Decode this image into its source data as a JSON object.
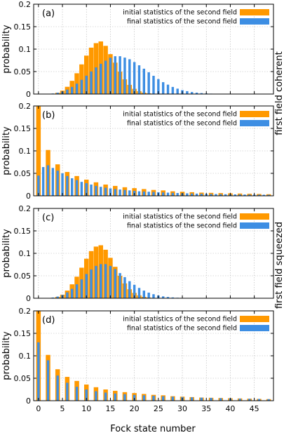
{
  "figure": {
    "xlabel": "Fock state number",
    "right_labels": [
      "first field coherent",
      "first field squeezed"
    ]
  },
  "colors": {
    "initial": "#ff9900",
    "final": "#3d8ee3"
  },
  "chart_data": [
    {
      "type": "bar",
      "panel_label": "(a)",
      "ylabel": "probability",
      "xlim": [
        -1,
        49
      ],
      "ylim": [
        0,
        0.2
      ],
      "xticks": [
        0,
        5,
        10,
        15,
        20,
        25,
        30,
        35,
        40,
        45
      ],
      "yticks": [
        0,
        0.05,
        0.1,
        0.15,
        0.2
      ],
      "ytick_labels": [
        "0",
        "0.05",
        "0.1",
        "0.15",
        "0.2"
      ],
      "x": [
        0,
        1,
        2,
        3,
        4,
        5,
        6,
        7,
        8,
        9,
        10,
        11,
        12,
        13,
        14,
        15,
        16,
        17,
        18,
        19,
        20,
        21,
        22,
        23,
        24,
        25,
        26,
        27,
        28,
        29,
        30,
        31,
        32,
        33,
        34,
        35,
        36,
        37,
        38,
        39,
        40,
        41,
        42,
        43,
        44,
        45,
        46,
        47,
        48
      ],
      "series": [
        {
          "name": "initial statistics of the second field",
          "color": "#ff9900",
          "values": [
            0.0,
            0.0,
            0.0002,
            0.0008,
            0.0028,
            0.0075,
            0.0161,
            0.0294,
            0.0463,
            0.066,
            0.0856,
            0.1033,
            0.1133,
            0.1171,
            0.1073,
            0.0888,
            0.0699,
            0.0499,
            0.0327,
            0.0204,
            0.0116,
            0.0064,
            0.0032,
            0.0015,
            0.0007,
            0.0003,
            0.0001,
            0,
            0,
            0,
            0,
            0,
            0,
            0,
            0,
            0,
            0,
            0,
            0,
            0,
            0,
            0,
            0,
            0,
            0,
            0,
            0,
            0,
            0
          ]
        },
        {
          "name": "final statistics of the second field",
          "color": "#3d8ee3",
          "values": [
            0.0,
            0.0001,
            0.0004,
            0.0012,
            0.003,
            0.0058,
            0.0099,
            0.0158,
            0.0231,
            0.0316,
            0.0408,
            0.0502,
            0.0594,
            0.0674,
            0.0742,
            0.0808,
            0.0842,
            0.0842,
            0.0811,
            0.0775,
            0.0712,
            0.064,
            0.0564,
            0.0484,
            0.0406,
            0.0332,
            0.0264,
            0.0209,
            0.0158,
            0.012,
            0.0088,
            0.0064,
            0.0045,
            0.0031,
            0.0021,
            0.0014,
            0.0009,
            0.0006,
            0.0004,
            0.0002,
            0.0001,
            0.0001,
            0,
            0,
            0,
            0,
            0,
            0,
            0
          ]
        }
      ]
    },
    {
      "type": "bar",
      "panel_label": "(b)",
      "ylabel": "probability",
      "xlim": [
        -1,
        49
      ],
      "ylim": [
        0,
        0.2
      ],
      "xticks": [
        0,
        5,
        10,
        15,
        20,
        25,
        30,
        35,
        40,
        45
      ],
      "yticks": [
        0,
        0.05,
        0.1,
        0.15,
        0.2
      ],
      "ytick_labels": [
        "0",
        "0.05",
        "0.1",
        "0.15",
        "0.2"
      ],
      "x": [
        0,
        1,
        2,
        3,
        4,
        5,
        6,
        7,
        8,
        9,
        10,
        11,
        12,
        13,
        14,
        15,
        16,
        17,
        18,
        19,
        20,
        21,
        22,
        23,
        24,
        25,
        26,
        27,
        28,
        29,
        30,
        31,
        32,
        33,
        34,
        35,
        36,
        37,
        38,
        39,
        40,
        41,
        42,
        43,
        44,
        45,
        46,
        47,
        48
      ],
      "series": [
        {
          "name": "initial statistics of the second field",
          "color": "#ff9900",
          "values": [
            0.199,
            0,
            0.102,
            0,
            0.07,
            0,
            0.053,
            0,
            0.044,
            0,
            0.036,
            0,
            0.03,
            0,
            0.025,
            0,
            0.022,
            0,
            0.019,
            0,
            0.017,
            0,
            0.015,
            0,
            0.013,
            0,
            0.012,
            0,
            0.01,
            0,
            0.009,
            0,
            0.008,
            0,
            0.007,
            0,
            0.0065,
            0,
            0.006,
            0,
            0.0055,
            0,
            0.005,
            0,
            0.0045,
            0,
            0.004,
            0,
            0.0035
          ]
        },
        {
          "name": "final statistics of the second field",
          "color": "#3d8ee3",
          "values": [
            0.045,
            0.064,
            0.068,
            0.062,
            0.056,
            0.05,
            0.044,
            0.039,
            0.035,
            0.031,
            0.028,
            0.025,
            0.022,
            0.02,
            0.018,
            0.0165,
            0.015,
            0.014,
            0.013,
            0.012,
            0.011,
            0.01,
            0.0095,
            0.009,
            0.0085,
            0.008,
            0.0075,
            0.007,
            0.0066,
            0.0062,
            0.0058,
            0.0055,
            0.0052,
            0.0049,
            0.0046,
            0.0043,
            0.0041,
            0.0039,
            0.0037,
            0.0035,
            0.0033,
            0.0031,
            0.003,
            0.0028,
            0.0027,
            0.0025,
            0.0024,
            0.0023,
            0.0022
          ]
        }
      ]
    },
    {
      "type": "bar",
      "panel_label": "(c)",
      "ylabel": "probability",
      "xlim": [
        -1,
        49
      ],
      "ylim": [
        0,
        0.2
      ],
      "xticks": [
        0,
        5,
        10,
        15,
        20,
        25,
        30,
        35,
        40,
        45
      ],
      "yticks": [
        0,
        0.05,
        0.1,
        0.15,
        0.2
      ],
      "ytick_labels": [
        "0",
        "0.05",
        "0.1",
        "0.15",
        "0.2"
      ],
      "x": [
        0,
        1,
        2,
        3,
        4,
        5,
        6,
        7,
        8,
        9,
        10,
        11,
        12,
        13,
        14,
        15,
        16,
        17,
        18,
        19,
        20,
        21,
        22,
        23,
        24,
        25,
        26,
        27,
        28,
        29,
        30,
        31,
        32,
        33,
        34,
        35,
        36,
        37,
        38,
        39,
        40,
        41,
        42,
        43,
        44,
        45,
        46,
        47,
        48
      ],
      "series": [
        {
          "name": "initial statistics of the second field",
          "color": "#ff9900",
          "values": [
            0.0,
            0.0,
            0.0003,
            0.001,
            0.003,
            0.008,
            0.017,
            0.031,
            0.048,
            0.068,
            0.088,
            0.105,
            0.115,
            0.118,
            0.108,
            0.09,
            0.07,
            0.05,
            0.033,
            0.02,
            0.012,
            0.0065,
            0.0032,
            0.0015,
            0.0007,
            0.0003,
            0.0001,
            0,
            0,
            0,
            0,
            0,
            0,
            0,
            0,
            0,
            0,
            0,
            0,
            0,
            0,
            0,
            0,
            0,
            0,
            0,
            0,
            0,
            0
          ]
        },
        {
          "name": "final statistics of the second field",
          "color": "#3d8ee3",
          "values": [
            0.0,
            0.0002,
            0.0006,
            0.0016,
            0.0038,
            0.0075,
            0.013,
            0.021,
            0.031,
            0.042,
            0.054,
            0.064,
            0.072,
            0.076,
            0.076,
            0.072,
            0.065,
            0.056,
            0.047,
            0.038,
            0.03,
            0.023,
            0.017,
            0.0125,
            0.009,
            0.0062,
            0.0042,
            0.0028,
            0.0018,
            0.0011,
            0.0007,
            0.0004,
            0.0002,
            0.0001,
            0,
            0,
            0,
            0,
            0,
            0,
            0,
            0,
            0,
            0,
            0,
            0,
            0,
            0,
            0
          ]
        }
      ]
    },
    {
      "type": "bar",
      "panel_label": "(d)",
      "ylabel": "probability",
      "xlim": [
        -1,
        49
      ],
      "ylim": [
        0,
        0.2
      ],
      "xticks": [
        0,
        5,
        10,
        15,
        20,
        25,
        30,
        35,
        40,
        45
      ],
      "yticks": [
        0,
        0.05,
        0.1,
        0.15,
        0.2
      ],
      "ytick_labels": [
        "0",
        "0.05",
        "0.1",
        "0.15",
        "0.2"
      ],
      "x": [
        0,
        1,
        2,
        3,
        4,
        5,
        6,
        7,
        8,
        9,
        10,
        11,
        12,
        13,
        14,
        15,
        16,
        17,
        18,
        19,
        20,
        21,
        22,
        23,
        24,
        25,
        26,
        27,
        28,
        29,
        30,
        31,
        32,
        33,
        34,
        35,
        36,
        37,
        38,
        39,
        40,
        41,
        42,
        43,
        44,
        45,
        46,
        47,
        48
      ],
      "series": [
        {
          "name": "initial statistics of the second field",
          "color": "#ff9900",
          "values": [
            0.199,
            0,
            0.102,
            0,
            0.07,
            0,
            0.053,
            0,
            0.044,
            0,
            0.036,
            0,
            0.03,
            0,
            0.025,
            0,
            0.022,
            0,
            0.019,
            0,
            0.017,
            0,
            0.015,
            0,
            0.013,
            0,
            0.012,
            0,
            0.01,
            0,
            0.009,
            0,
            0.008,
            0,
            0.007,
            0,
            0.0065,
            0,
            0.006,
            0,
            0.0055,
            0,
            0.005,
            0,
            0.0045,
            0,
            0.004,
            0,
            0.0035
          ]
        },
        {
          "name": "final statistics of the second field",
          "color": "#3d8ee3",
          "values": [
            0.13,
            0,
            0.09,
            0,
            0.056,
            0,
            0.04,
            0,
            0.031,
            0,
            0.025,
            0,
            0.021,
            0,
            0.018,
            0,
            0.016,
            0,
            0.0145,
            0,
            0.013,
            0,
            0.012,
            0,
            0.011,
            0,
            0.01,
            0,
            0.009,
            0,
            0.0082,
            0,
            0.0075,
            0,
            0.0068,
            0,
            0.0062,
            0,
            0.0056,
            0,
            0.0051,
            0,
            0.0046,
            0,
            0.0042,
            0,
            0.0038,
            0,
            0.0034
          ]
        }
      ]
    }
  ]
}
